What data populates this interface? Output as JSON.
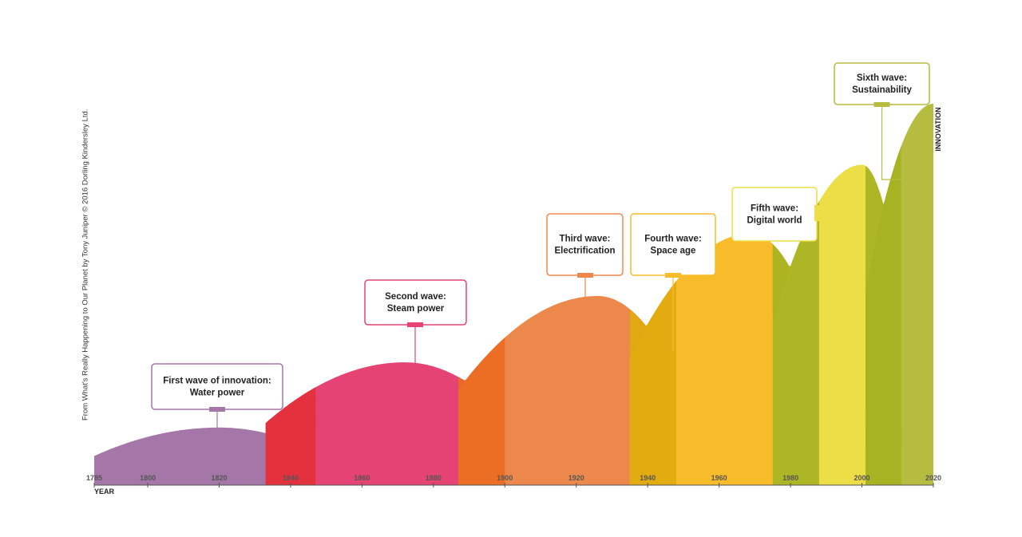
{
  "credit": "From What's Really Happening to Our Planet by Tony Juniper © 2016 Dorling Kindersley Ltd.",
  "chart_data": {
    "type": "area",
    "xlabel": "YEAR",
    "ylabel": "INNOVATION",
    "xlim": [
      1785,
      2020
    ],
    "ticks": [
      1785,
      1800,
      1820,
      1840,
      1860,
      1880,
      1900,
      1920,
      1940,
      1960,
      1980,
      2000,
      2020
    ],
    "series": [
      {
        "name": "First wave of innovation:",
        "subtitle": "Water power",
        "start": 1785,
        "peak_year": 1820,
        "end": 1847,
        "peak": 0.151,
        "color": "#a576a8",
        "overlap_color": "#a82e6a"
      },
      {
        "name": "Second wave:",
        "subtitle": "Steam power",
        "start": 1833,
        "peak_year": 1872,
        "end": 1900,
        "peak": 0.322,
        "color": "#e44373",
        "overlap_color": "#e3303a"
      },
      {
        "name": "Third wave:",
        "subtitle": "Electrification",
        "start": 1887,
        "peak_year": 1926,
        "end": 1948,
        "peak": 0.496,
        "color": "#ed884d",
        "overlap_color": "#ec6b22"
      },
      {
        "name": "Fourth wave:",
        "subtitle": "Space age",
        "start": 1935,
        "peak_year": 1969,
        "end": 1988,
        "peak": 0.66,
        "color": "#f8bc2a",
        "overlap_color": "#dfaa0e"
      },
      {
        "name": "Fifth wave:",
        "subtitle": "Digital world",
        "start": 1975,
        "peak_year": 2000,
        "end": 2011,
        "peak": 0.84,
        "color": "#ebde47",
        "overlap_color": "#a7b222"
      },
      {
        "name": "Sixth wave:",
        "subtitle": "Sustainability",
        "start": 2001,
        "peak_year": 2020,
        "end": 2020,
        "peak": 1.0,
        "color": "#b6bc3f",
        "overlap_color": "#a7b222"
      }
    ]
  }
}
